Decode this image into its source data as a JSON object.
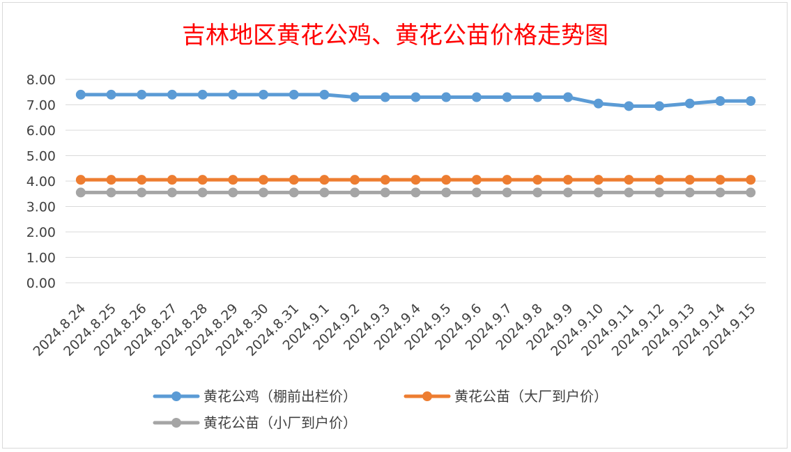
{
  "chart_data": {
    "type": "line",
    "title": "吉林地区黄花公鸡、黄花公苗价格走势图",
    "xlabel": "",
    "ylabel": "",
    "ylim": [
      0,
      8
    ],
    "yticks": [
      "0.00",
      "1.00",
      "2.00",
      "3.00",
      "4.00",
      "5.00",
      "6.00",
      "7.00",
      "8.00"
    ],
    "grid": true,
    "legend_position": "bottom",
    "categories": [
      "2024.8.24",
      "2024.8.25",
      "2024.8.26",
      "2024.8.27",
      "2024.8.28",
      "2024.8.29",
      "2024.8.30",
      "2024.8.31",
      "2024.9.1",
      "2024.9.2",
      "2024.9.3",
      "2024.9.4",
      "2024.9.5",
      "2024.9.6",
      "2024.9.7",
      "2024.9.8",
      "2024.9.9",
      "2024.9.10",
      "2024.9.11",
      "2024.9.12",
      "2024.9.13",
      "2024.9.14",
      "2024.9.15"
    ],
    "series": [
      {
        "name": "黄花公鸡（棚前出栏价）",
        "color": "#5b9bd5",
        "values": [
          7.4,
          7.4,
          7.4,
          7.4,
          7.4,
          7.4,
          7.4,
          7.4,
          7.4,
          7.3,
          7.3,
          7.3,
          7.3,
          7.3,
          7.3,
          7.3,
          7.3,
          7.05,
          6.95,
          6.95,
          7.05,
          7.15,
          7.15
        ]
      },
      {
        "name": "黄花公苗（大厂到户价）",
        "color": "#ed7d31",
        "values": [
          4.05,
          4.05,
          4.05,
          4.05,
          4.05,
          4.05,
          4.05,
          4.05,
          4.05,
          4.05,
          4.05,
          4.05,
          4.05,
          4.05,
          4.05,
          4.05,
          4.05,
          4.05,
          4.05,
          4.05,
          4.05,
          4.05,
          4.05
        ]
      },
      {
        "name": "黄花公苗（小厂到户价）",
        "color": "#a5a5a5",
        "values": [
          3.55,
          3.55,
          3.55,
          3.55,
          3.55,
          3.55,
          3.55,
          3.55,
          3.55,
          3.55,
          3.55,
          3.55,
          3.55,
          3.55,
          3.55,
          3.55,
          3.55,
          3.55,
          3.55,
          3.55,
          3.55,
          3.55,
          3.55
        ]
      }
    ]
  }
}
